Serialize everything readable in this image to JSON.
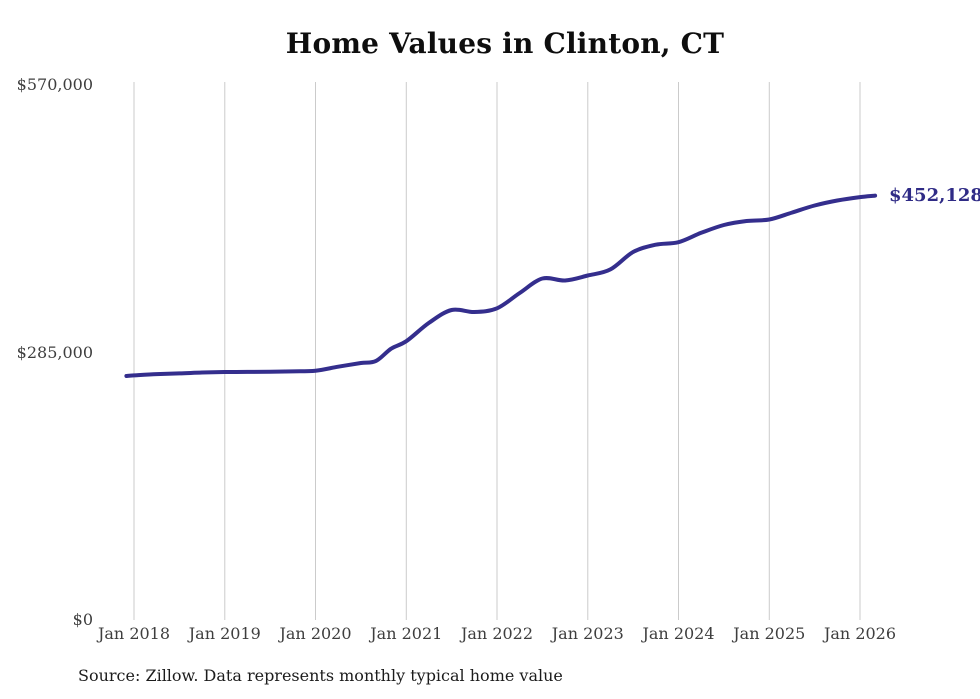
{
  "page": {
    "title": "Home Values in Clinton, CT",
    "source_note": "Source: Zillow. Data represents monthly typical home value"
  },
  "colors": {
    "background": "#ffffff",
    "line": "#342e8d",
    "end_label": "#2f2b86",
    "grid": "#cbcbcb",
    "axis_text": "#3e3e3e",
    "title_text": "#0e0e0e",
    "source_text": "#1c1c1c"
  },
  "chart_data": {
    "type": "line",
    "title": "Home Values in Clinton, CT",
    "xlabel": "",
    "ylabel": "",
    "ylim": [
      0,
      570000
    ],
    "y_tick_labels": [
      "$570,000",
      "$285,000",
      "$0"
    ],
    "y_tick_values": [
      570000,
      285000,
      0
    ],
    "x_tick_labels": [
      "Jan 2018",
      "Jan 2019",
      "Jan 2020",
      "Jan 2021",
      "Jan 2022",
      "Jan 2023",
      "Jan 2024",
      "Jan 2025",
      "Jan 2026"
    ],
    "x_tick_months": [
      "2018-01",
      "2019-01",
      "2020-01",
      "2021-01",
      "2022-01",
      "2023-01",
      "2024-01",
      "2025-01",
      "2026-01"
    ],
    "grid": "vertical-only",
    "legend": "none",
    "end_label": "$452,128",
    "end_value": 452128,
    "series": [
      {
        "name": "Monthly typical home value",
        "color": "#342e8d",
        "points": [
          {
            "date": "2017-12",
            "value": 260000
          },
          {
            "date": "2018-01",
            "value": 260600
          },
          {
            "date": "2018-04",
            "value": 262000
          },
          {
            "date": "2018-07",
            "value": 262700
          },
          {
            "date": "2018-10",
            "value": 263700
          },
          {
            "date": "2019-01",
            "value": 264200
          },
          {
            "date": "2019-04",
            "value": 264300
          },
          {
            "date": "2019-07",
            "value": 264500
          },
          {
            "date": "2019-10",
            "value": 264900
          },
          {
            "date": "2020-01",
            "value": 265600
          },
          {
            "date": "2020-04",
            "value": 269900
          },
          {
            "date": "2020-07",
            "value": 273800
          },
          {
            "date": "2020-09",
            "value": 276000
          },
          {
            "date": "2020-11",
            "value": 289000
          },
          {
            "date": "2021-01",
            "value": 297000
          },
          {
            "date": "2021-04",
            "value": 316500
          },
          {
            "date": "2021-07",
            "value": 330300
          },
          {
            "date": "2021-10",
            "value": 328100
          },
          {
            "date": "2022-01",
            "value": 332100
          },
          {
            "date": "2022-04",
            "value": 348400
          },
          {
            "date": "2022-07",
            "value": 363800
          },
          {
            "date": "2022-10",
            "value": 361700
          },
          {
            "date": "2023-01",
            "value": 367000
          },
          {
            "date": "2023-04",
            "value": 373500
          },
          {
            "date": "2023-07",
            "value": 392100
          },
          {
            "date": "2023-10",
            "value": 399800
          },
          {
            "date": "2024-01",
            "value": 402500
          },
          {
            "date": "2024-04",
            "value": 412500
          },
          {
            "date": "2024-07",
            "value": 420800
          },
          {
            "date": "2024-10",
            "value": 425100
          },
          {
            "date": "2025-01",
            "value": 426700
          },
          {
            "date": "2025-04",
            "value": 434100
          },
          {
            "date": "2025-07",
            "value": 441600
          },
          {
            "date": "2025-10",
            "value": 446900
          },
          {
            "date": "2026-01",
            "value": 450600
          },
          {
            "date": "2026-03",
            "value": 452128
          }
        ]
      }
    ]
  }
}
